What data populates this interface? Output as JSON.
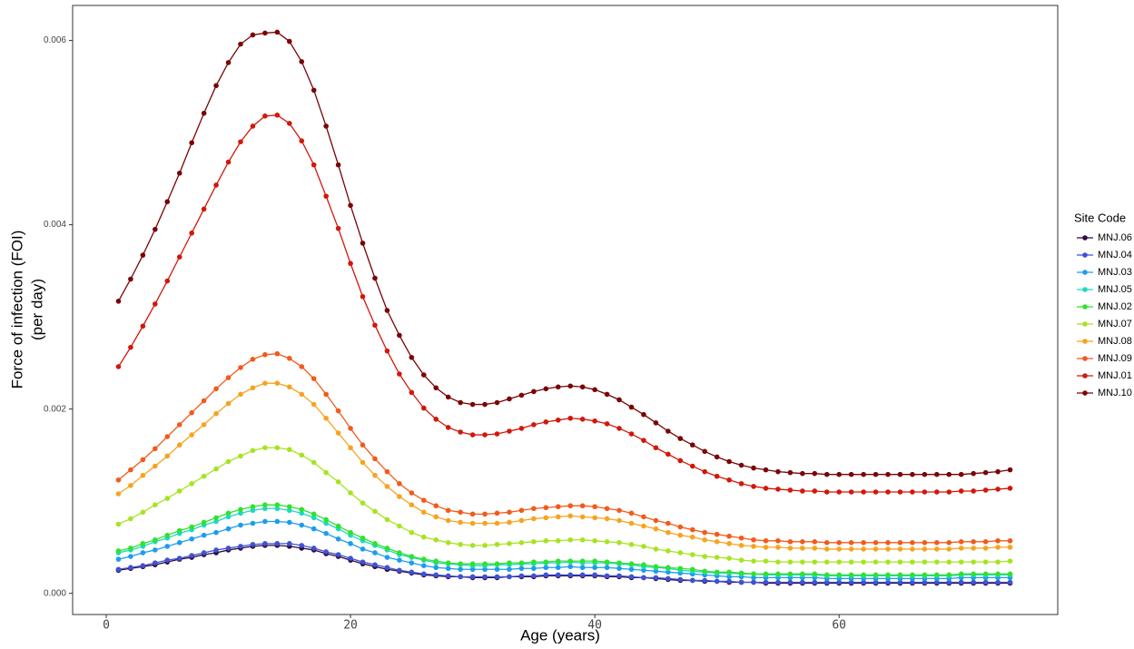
{
  "chart_data": {
    "type": "line",
    "xlabel": "Age (years)",
    "ylabel": [
      "Force of infection (FOI)",
      "(per day)"
    ],
    "legend_title": "Site Code",
    "legend": "right",
    "grid": false,
    "xlim": [
      -2.75,
      77.9
    ],
    "ylim": [
      -0.00023,
      0.00638
    ],
    "xticks": [
      0,
      20,
      40,
      60
    ],
    "yticks": [
      {
        "value": 0,
        "label": "0.000"
      },
      {
        "value": 0.002,
        "label": "0.002"
      },
      {
        "value": 0.004,
        "label": "0.004"
      },
      {
        "value": 0.006,
        "label": "0.006"
      }
    ],
    "x": [
      1,
      2,
      3,
      4,
      5,
      6,
      7,
      8,
      9,
      10,
      11,
      12,
      13,
      14,
      15,
      16,
      17,
      18,
      19,
      20,
      21,
      22,
      23,
      24,
      25,
      26,
      27,
      28,
      29,
      30,
      31,
      32,
      33,
      34,
      35,
      36,
      37,
      38,
      39,
      40,
      41,
      42,
      43,
      44,
      45,
      46,
      47,
      48,
      49,
      50,
      51,
      52,
      53,
      54,
      55,
      56,
      57,
      58,
      59,
      60,
      61,
      62,
      63,
      64,
      65,
      66,
      67,
      68,
      69,
      70,
      71,
      72,
      73,
      74
    ],
    "series": [
      {
        "name": "MNJ.06",
        "color": "#2d0b3e",
        "values": [
          0.00025,
          0.00027,
          0.00029,
          0.00031,
          0.00034,
          0.00037,
          0.00039,
          0.00042,
          0.00044,
          0.00047,
          0.00049,
          0.00051,
          0.00052,
          0.00052,
          0.00051,
          0.00049,
          0.00047,
          0.00043,
          0.0004,
          0.00036,
          0.00032,
          0.00029,
          0.00026,
          0.00024,
          0.00022,
          0.0002,
          0.00019,
          0.00018,
          0.00018,
          0.00017,
          0.00017,
          0.00017,
          0.00018,
          0.00018,
          0.00018,
          0.00019,
          0.00019,
          0.00019,
          0.00019,
          0.00019,
          0.00018,
          0.00018,
          0.00017,
          0.00017,
          0.00016,
          0.00015,
          0.00014,
          0.00014,
          0.00013,
          0.00013,
          0.00012,
          0.00012,
          0.00012,
          0.00011,
          0.00011,
          0.00011,
          0.00011,
          0.00011,
          0.00011,
          0.00011,
          0.00011,
          0.00011,
          0.00011,
          0.00011,
          0.00011,
          0.00011,
          0.00011,
          0.00011,
          0.00011,
          0.00011,
          0.00011,
          0.00011,
          0.00011,
          0.00011
        ]
      },
      {
        "name": "MNJ.04",
        "color": "#3f52d4",
        "values": [
          0.00026,
          0.00028,
          0.0003,
          0.00033,
          0.00036,
          0.00038,
          0.00041,
          0.00044,
          0.00047,
          0.00049,
          0.00051,
          0.00053,
          0.00054,
          0.00054,
          0.00054,
          0.00052,
          0.00049,
          0.00045,
          0.00042,
          0.00038,
          0.00034,
          0.00031,
          0.00028,
          0.00025,
          0.00023,
          0.00021,
          0.0002,
          0.00019,
          0.00018,
          0.00018,
          0.00018,
          0.00018,
          0.00018,
          0.00019,
          0.00019,
          0.0002,
          0.0002,
          0.0002,
          0.0002,
          0.0002,
          0.00019,
          0.00019,
          0.00018,
          0.00017,
          0.00017,
          0.00016,
          0.00015,
          0.00014,
          0.00014,
          0.00013,
          0.00013,
          0.00012,
          0.00012,
          0.00012,
          0.00012,
          0.00012,
          0.00012,
          0.00012,
          0.00012,
          0.00012,
          0.00012,
          0.00012,
          0.00012,
          0.00012,
          0.00012,
          0.00012,
          0.00012,
          0.00012,
          0.00012,
          0.00012,
          0.00012,
          0.00012,
          0.00012,
          0.00012
        ]
      },
      {
        "name": "MNJ.03",
        "color": "#1c9ded",
        "values": [
          0.00037,
          0.0004,
          0.00044,
          0.00047,
          0.00051,
          0.00055,
          0.00059,
          0.00063,
          0.00066,
          0.0007,
          0.00074,
          0.00076,
          0.00078,
          0.00078,
          0.00077,
          0.00074,
          0.0007,
          0.00065,
          0.00059,
          0.00054,
          0.00048,
          0.00044,
          0.00039,
          0.00036,
          0.00033,
          0.0003,
          0.00028,
          0.00027,
          0.00026,
          0.00026,
          0.00026,
          0.00026,
          0.00026,
          0.00027,
          0.00027,
          0.00028,
          0.00028,
          0.00029,
          0.00028,
          0.00028,
          0.00028,
          0.00027,
          0.00026,
          0.00025,
          0.00024,
          0.00023,
          0.00022,
          0.00021,
          0.0002,
          0.00019,
          0.00018,
          0.00018,
          0.00017,
          0.00017,
          0.00017,
          0.00017,
          0.00017,
          0.00017,
          0.00016,
          0.00016,
          0.00016,
          0.00016,
          0.00016,
          0.00016,
          0.00016,
          0.00016,
          0.00016,
          0.00016,
          0.00016,
          0.00017,
          0.00017,
          0.00017,
          0.00017,
          0.00017
        ]
      },
      {
        "name": "MNJ.05",
        "color": "#1fd8c2",
        "values": [
          0.00044,
          0.00047,
          0.00051,
          0.00056,
          0.0006,
          0.00065,
          0.00069,
          0.00074,
          0.00078,
          0.00083,
          0.00087,
          0.0009,
          0.00092,
          0.00092,
          0.0009,
          0.00087,
          0.00082,
          0.00076,
          0.0007,
          0.00063,
          0.00057,
          0.00052,
          0.00047,
          0.00042,
          0.00039,
          0.00036,
          0.00033,
          0.00032,
          0.00031,
          0.0003,
          0.0003,
          0.00031,
          0.00031,
          0.00032,
          0.00032,
          0.00033,
          0.00033,
          0.00034,
          0.00033,
          0.00033,
          0.00033,
          0.00032,
          0.00031,
          0.00029,
          0.00028,
          0.00027,
          0.00025,
          0.00024,
          0.00023,
          0.00022,
          0.00022,
          0.00021,
          0.00021,
          0.0002,
          0.0002,
          0.0002,
          0.0002,
          0.0002,
          0.00019,
          0.00019,
          0.00019,
          0.00019,
          0.00019,
          0.00019,
          0.00019,
          0.00019,
          0.00019,
          0.00019,
          0.00019,
          0.0002,
          0.0002,
          0.0002,
          0.0002,
          0.0002
        ]
      },
      {
        "name": "MNJ.02",
        "color": "#2fe22f",
        "values": [
          0.00046,
          0.00049,
          0.00054,
          0.00058,
          0.00063,
          0.00068,
          0.00072,
          0.00077,
          0.00082,
          0.00087,
          0.00091,
          0.00094,
          0.00096,
          0.00096,
          0.00094,
          0.00091,
          0.00086,
          0.0008,
          0.00073,
          0.00066,
          0.0006,
          0.00054,
          0.00049,
          0.00044,
          0.0004,
          0.00037,
          0.00035,
          0.00033,
          0.00032,
          0.00032,
          0.00032,
          0.00032,
          0.00033,
          0.00033,
          0.00034,
          0.00034,
          0.00035,
          0.00035,
          0.00035,
          0.00035,
          0.00034,
          0.00033,
          0.00032,
          0.00031,
          0.00029,
          0.00028,
          0.00027,
          0.00026,
          0.00024,
          0.00023,
          0.00023,
          0.00022,
          0.00021,
          0.00021,
          0.00021,
          0.00021,
          0.00021,
          0.00021,
          0.0002,
          0.0002,
          0.0002,
          0.0002,
          0.0002,
          0.0002,
          0.0002,
          0.0002,
          0.0002,
          0.0002,
          0.0002,
          0.00021,
          0.00021,
          0.00021,
          0.00021,
          0.00021
        ]
      },
      {
        "name": "MNJ.07",
        "color": "#a6e420",
        "values": [
          0.00075,
          0.00081,
          0.00088,
          0.00096,
          0.00103,
          0.00111,
          0.00119,
          0.00127,
          0.00135,
          0.00143,
          0.00149,
          0.00155,
          0.00158,
          0.00158,
          0.00156,
          0.0015,
          0.00142,
          0.00131,
          0.00121,
          0.00109,
          0.00098,
          0.00089,
          0.0008,
          0.00073,
          0.00066,
          0.00061,
          0.00058,
          0.00055,
          0.00053,
          0.00052,
          0.00052,
          0.00053,
          0.00054,
          0.00055,
          0.00056,
          0.00057,
          0.00057,
          0.00058,
          0.00058,
          0.00057,
          0.00056,
          0.00055,
          0.00053,
          0.00051,
          0.00048,
          0.00046,
          0.00044,
          0.00042,
          0.0004,
          0.00039,
          0.00038,
          0.00036,
          0.00035,
          0.00035,
          0.00034,
          0.00034,
          0.00034,
          0.00034,
          0.00034,
          0.00034,
          0.00034,
          0.00034,
          0.00034,
          0.00034,
          0.00034,
          0.00034,
          0.00034,
          0.00034,
          0.00034,
          0.00034,
          0.00034,
          0.00034,
          0.00034,
          0.00035
        ]
      },
      {
        "name": "MNJ.08",
        "color": "#f6a321",
        "values": [
          0.00108,
          0.00117,
          0.00128,
          0.00138,
          0.00149,
          0.00161,
          0.00172,
          0.00183,
          0.00195,
          0.00206,
          0.00216,
          0.00223,
          0.00228,
          0.00228,
          0.00224,
          0.00216,
          0.00205,
          0.0019,
          0.00174,
          0.00158,
          0.00142,
          0.00128,
          0.00116,
          0.00105,
          0.00096,
          0.00088,
          0.00083,
          0.00079,
          0.00077,
          0.00076,
          0.00076,
          0.00076,
          0.00077,
          0.00079,
          0.00081,
          0.00082,
          0.00083,
          0.00084,
          0.00083,
          0.00082,
          0.00081,
          0.00079,
          0.00076,
          0.00073,
          0.0007,
          0.00066,
          0.00063,
          0.00061,
          0.00058,
          0.00056,
          0.00054,
          0.00052,
          0.00051,
          0.0005,
          0.0005,
          0.00049,
          0.00049,
          0.00049,
          0.00048,
          0.00048,
          0.00048,
          0.00048,
          0.00048,
          0.00048,
          0.00048,
          0.00048,
          0.00048,
          0.00048,
          0.00048,
          0.00049,
          0.00049,
          0.00049,
          0.0005,
          0.0005
        ]
      },
      {
        "name": "MNJ.09",
        "color": "#f25a1b",
        "values": [
          0.00123,
          0.00134,
          0.00145,
          0.00157,
          0.0017,
          0.00183,
          0.00196,
          0.00209,
          0.00222,
          0.00234,
          0.00245,
          0.00254,
          0.00259,
          0.0026,
          0.00255,
          0.00246,
          0.00233,
          0.00216,
          0.00198,
          0.00179,
          0.00161,
          0.00146,
          0.00132,
          0.00119,
          0.00109,
          0.00101,
          0.00095,
          0.0009,
          0.00088,
          0.00086,
          0.00086,
          0.00087,
          0.00088,
          0.0009,
          0.00092,
          0.00093,
          0.00094,
          0.00095,
          0.00095,
          0.00094,
          0.00092,
          0.0009,
          0.00087,
          0.00083,
          0.00079,
          0.00076,
          0.00072,
          0.00069,
          0.00066,
          0.00064,
          0.00062,
          0.0006,
          0.00058,
          0.00057,
          0.00057,
          0.00056,
          0.00056,
          0.00056,
          0.00055,
          0.00055,
          0.00055,
          0.00055,
          0.00055,
          0.00055,
          0.00055,
          0.00055,
          0.00055,
          0.00055,
          0.00055,
          0.00056,
          0.00056,
          0.00056,
          0.00057,
          0.00057
        ]
      },
      {
        "name": "MNJ.01",
        "color": "#d2170c",
        "values": [
          0.00246,
          0.00267,
          0.0029,
          0.00314,
          0.00339,
          0.00365,
          0.00391,
          0.00417,
          0.00443,
          0.00468,
          0.0049,
          0.00507,
          0.00518,
          0.00519,
          0.0051,
          0.00491,
          0.00465,
          0.00431,
          0.00396,
          0.00358,
          0.00322,
          0.00291,
          0.00263,
          0.00238,
          0.00218,
          0.00201,
          0.00189,
          0.0018,
          0.00175,
          0.00172,
          0.00172,
          0.00173,
          0.00176,
          0.00179,
          0.00183,
          0.00186,
          0.00188,
          0.0019,
          0.00189,
          0.00187,
          0.00184,
          0.00179,
          0.00173,
          0.00166,
          0.00158,
          0.00151,
          0.00144,
          0.00138,
          0.00132,
          0.00127,
          0.00123,
          0.00119,
          0.00116,
          0.00114,
          0.00113,
          0.00112,
          0.00111,
          0.00111,
          0.0011,
          0.0011,
          0.0011,
          0.0011,
          0.0011,
          0.0011,
          0.0011,
          0.0011,
          0.0011,
          0.0011,
          0.0011,
          0.00111,
          0.00111,
          0.00112,
          0.00113,
          0.00114
        ]
      },
      {
        "name": "MNJ.10",
        "color": "#7a0404",
        "values": [
          0.00317,
          0.00341,
          0.00367,
          0.00395,
          0.00425,
          0.00456,
          0.00489,
          0.00521,
          0.00551,
          0.00576,
          0.00596,
          0.00606,
          0.00608,
          0.00609,
          0.00599,
          0.00577,
          0.00546,
          0.00507,
          0.00465,
          0.00421,
          0.0038,
          0.00342,
          0.00307,
          0.0028,
          0.00256,
          0.00237,
          0.00223,
          0.00213,
          0.00207,
          0.00205,
          0.00205,
          0.00207,
          0.00211,
          0.00215,
          0.00219,
          0.00222,
          0.00224,
          0.00225,
          0.00224,
          0.00221,
          0.00216,
          0.0021,
          0.00202,
          0.00194,
          0.00185,
          0.00176,
          0.00168,
          0.00161,
          0.00154,
          0.00148,
          0.00143,
          0.00139,
          0.00136,
          0.00134,
          0.00132,
          0.00131,
          0.0013,
          0.0013,
          0.00129,
          0.00129,
          0.00129,
          0.00129,
          0.00129,
          0.00129,
          0.00129,
          0.00129,
          0.00129,
          0.00129,
          0.00129,
          0.00129,
          0.0013,
          0.00131,
          0.00132,
          0.00134
        ]
      }
    ]
  }
}
